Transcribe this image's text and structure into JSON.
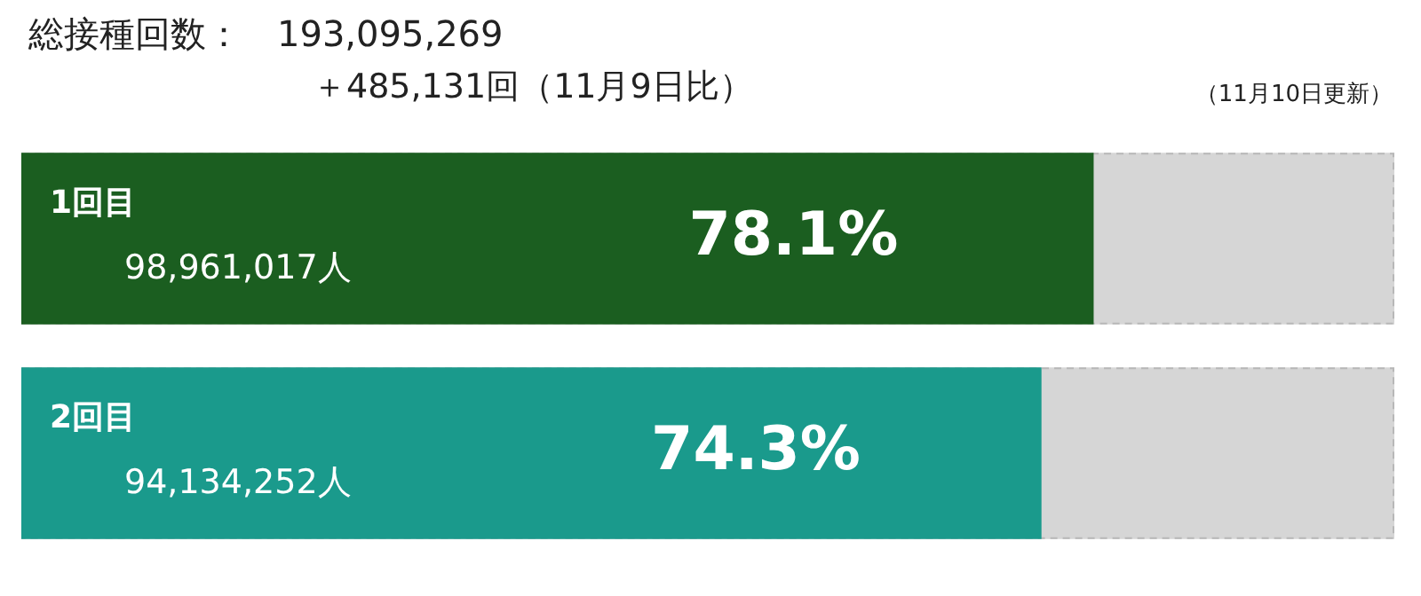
{
  "chart_data": {
    "type": "bar",
    "orientation": "horizontal",
    "title": "総接種回数：　193,095,269",
    "subtitle": "＋485,131回（11月9日比）",
    "categories": [
      "1回目",
      "2回目"
    ],
    "values": [
      78.1,
      74.3
    ],
    "colors": [
      "#1b5e20",
      "#1a9a8c"
    ],
    "value_labels": [
      "78.1%",
      "74.3%"
    ],
    "xlim": [
      0,
      100
    ],
    "tick_labels": false,
    "legend": false,
    "annotations": [
      "（11月10日更新）",
      "98,961,017人",
      "94,134,252人"
    ]
  }
}
